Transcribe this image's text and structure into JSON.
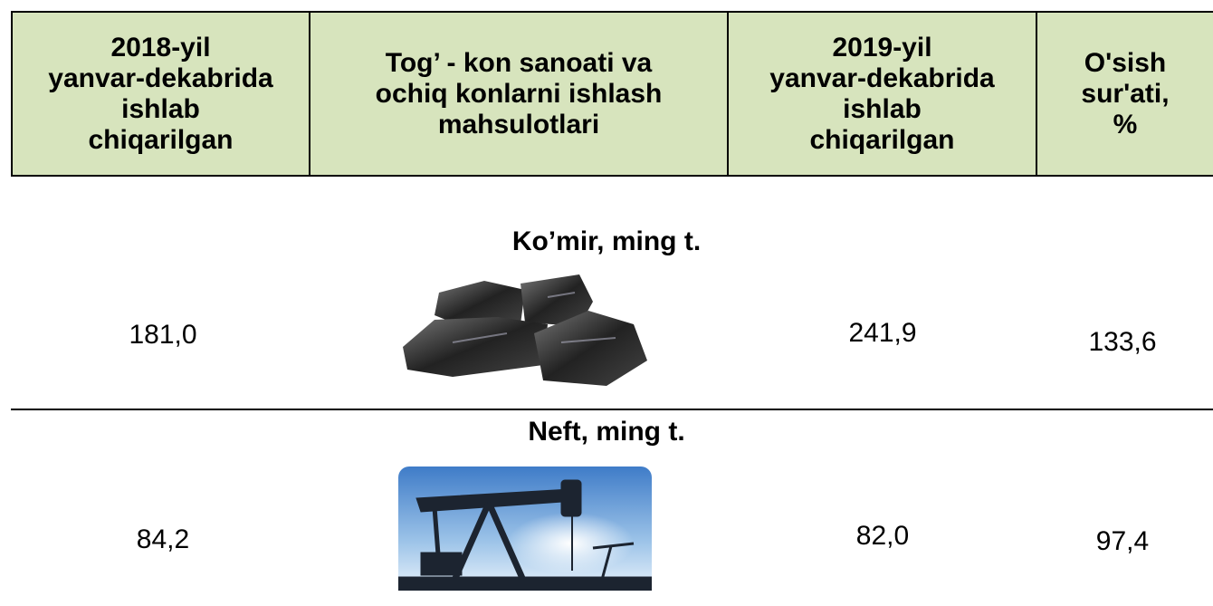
{
  "header": {
    "columns": [
      {
        "lines": [
          "2018-yil",
          "yanvar-dekabrida",
          "ishlab",
          "chiqarilgan"
        ]
      },
      {
        "lines": [
          "Tog’ - kon sanoati va",
          "ochiq konlarni ishlash",
          "mahsulotlari"
        ]
      },
      {
        "lines": [
          "2019-yil",
          "yanvar-dekabrida",
          "ishlab",
          "chiqarilgan"
        ]
      },
      {
        "lines": [
          "O'sish",
          "sur'ati,",
          "%"
        ]
      }
    ]
  },
  "sections": [
    {
      "title": "Ko’mir, ming t.",
      "row": [
        "181,0",
        "241,9",
        "133,6"
      ]
    },
    {
      "title": "Neft, ming t.",
      "row": [
        "84,2",
        "82,0",
        "97,4"
      ]
    }
  ]
}
